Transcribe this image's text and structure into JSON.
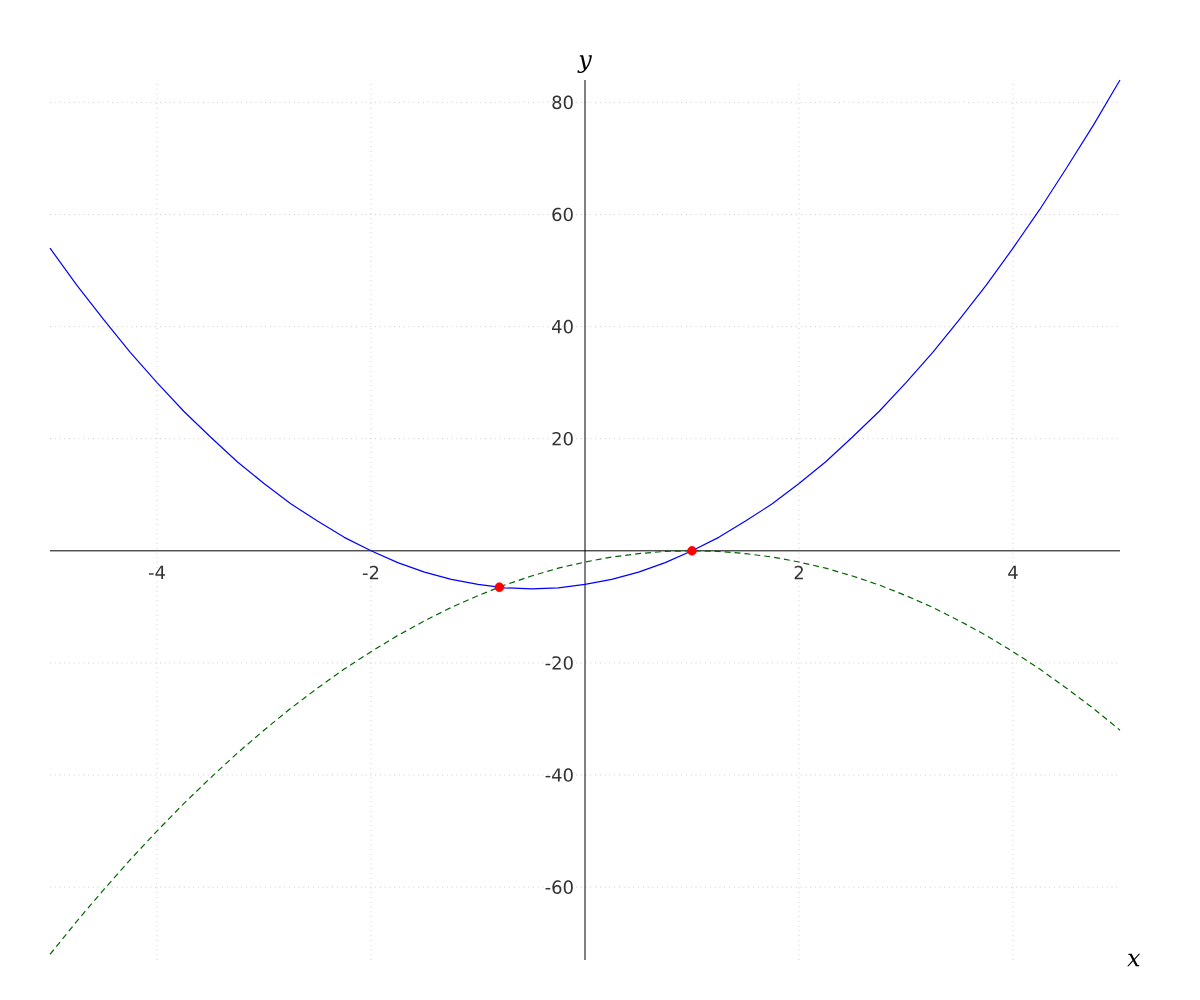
{
  "chart_data": {
    "type": "line",
    "xlabel": "x",
    "ylabel": "y",
    "xlim": [
      -5,
      5
    ],
    "ylim": [
      -73,
      84
    ],
    "xticks": [
      -4,
      -2,
      2,
      4
    ],
    "yticks": [
      -60,
      -40,
      -20,
      20,
      40,
      60,
      80
    ],
    "grid": true,
    "series": [
      {
        "color": "#0000ff",
        "line_style": "solid",
        "marker": "none",
        "x": [
          -5,
          -4.75,
          -4.5,
          -4.25,
          -4,
          -3.75,
          -3.5,
          -3.25,
          -3,
          -2.75,
          -2.5,
          -2.25,
          -2,
          -1.75,
          -1.5,
          -1.25,
          -1,
          -0.75,
          -0.5,
          -0.25,
          0,
          0.25,
          0.5,
          0.75,
          1,
          1.25,
          1.5,
          1.75,
          2,
          2.25,
          2.5,
          2.75,
          3,
          3.25,
          3.5,
          3.75,
          4,
          4.25,
          4.5,
          4.75,
          5
        ],
        "values": [
          54,
          47.4,
          41.3,
          35.4,
          30,
          24.9,
          20.3,
          15.9,
          12,
          8.4,
          5.3,
          2.4,
          0,
          -2.1,
          -3.8,
          -5.1,
          -6,
          -6.6,
          -6.8,
          -6.6,
          -6,
          -5.1,
          -3.8,
          -2.1,
          0,
          2.4,
          5.3,
          8.4,
          12,
          15.9,
          20.3,
          24.9,
          30,
          35.4,
          41.3,
          47.4,
          54,
          60.9,
          68.3,
          75.9,
          84
        ]
      },
      {
        "color": "#006400",
        "line_style": "dashed",
        "marker": "none",
        "x": [
          -5,
          -4.75,
          -4.5,
          -4.25,
          -4,
          -3.75,
          -3.5,
          -3.25,
          -3,
          -2.75,
          -2.5,
          -2.25,
          -2,
          -1.75,
          -1.5,
          -1.25,
          -1,
          -0.75,
          -0.5,
          -0.25,
          0,
          0.25,
          0.5,
          0.75,
          1,
          1.25,
          1.5,
          1.75,
          2,
          2.25,
          2.5,
          2.75,
          3,
          3.25,
          3.5,
          3.75,
          4,
          4.25,
          4.5,
          4.75,
          5
        ],
        "values": [
          -72,
          -66.1,
          -60.5,
          -55.1,
          -50,
          -45.1,
          -40.5,
          -36.1,
          -32,
          -28.1,
          -24.5,
          -21.1,
          -18,
          -15.1,
          -12.5,
          -10.1,
          -8,
          -6.1,
          -4.5,
          -3.1,
          -2,
          -1.1,
          -0.5,
          -0.1,
          0,
          -0.1,
          -0.5,
          -1.1,
          -2,
          -3.1,
          -4.5,
          -6.1,
          -8,
          -10.1,
          -12.5,
          -15.1,
          -18,
          -21.1,
          -24.5,
          -28.1,
          -32
        ]
      },
      {
        "type": "scatter",
        "color": "#ff0000",
        "marker": "circle",
        "x": [
          -0.8,
          1
        ],
        "values": [
          -6.5,
          0
        ]
      }
    ]
  }
}
